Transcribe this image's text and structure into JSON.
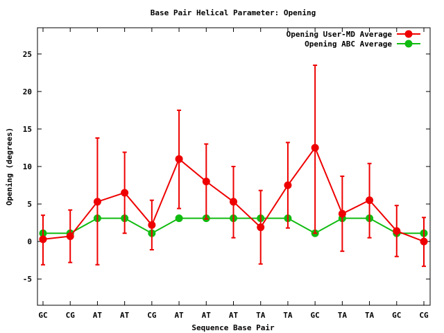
{
  "chart_data": {
    "type": "line",
    "title": "Base Pair Helical Parameter: Opening",
    "xlabel": "Sequence Base Pair",
    "ylabel": "Opening (degrees)",
    "ylim": [
      -8.5,
      28.5
    ],
    "yticks": [
      -5,
      0,
      5,
      10,
      15,
      20,
      25
    ],
    "categories": [
      "GC",
      "CG",
      "AT",
      "AT",
      "CG",
      "AT",
      "AT",
      "AT",
      "TA",
      "TA",
      "GC",
      "TA",
      "TA",
      "GC",
      "CG"
    ],
    "grid": false,
    "legend_position": "top-right",
    "series": [
      {
        "name": "Opening User-MD Average",
        "color": "#ee0000",
        "values": [
          0.3,
          0.7,
          5.3,
          6.5,
          2.2,
          11.0,
          8.0,
          5.3,
          1.9,
          7.5,
          12.5,
          3.7,
          5.5,
          1.4,
          0.0
        ],
        "error_low": [
          -3.1,
          -2.8,
          -3.1,
          1.1,
          -1.1,
          4.4,
          3.0,
          0.5,
          -3.0,
          1.8,
          1.1,
          -1.3,
          0.5,
          -2.0,
          -3.3
        ],
        "error_high": [
          3.5,
          4.2,
          13.8,
          11.9,
          5.5,
          17.5,
          13.0,
          10.0,
          6.8,
          13.2,
          23.5,
          8.7,
          10.4,
          4.8,
          3.2
        ]
      },
      {
        "name": "Opening ABC Average",
        "color": "#11bb11",
        "values": [
          1.1,
          1.1,
          3.1,
          3.1,
          1.1,
          3.1,
          3.1,
          3.1,
          3.1,
          3.1,
          1.1,
          3.1,
          3.1,
          1.1,
          1.1
        ]
      }
    ]
  }
}
